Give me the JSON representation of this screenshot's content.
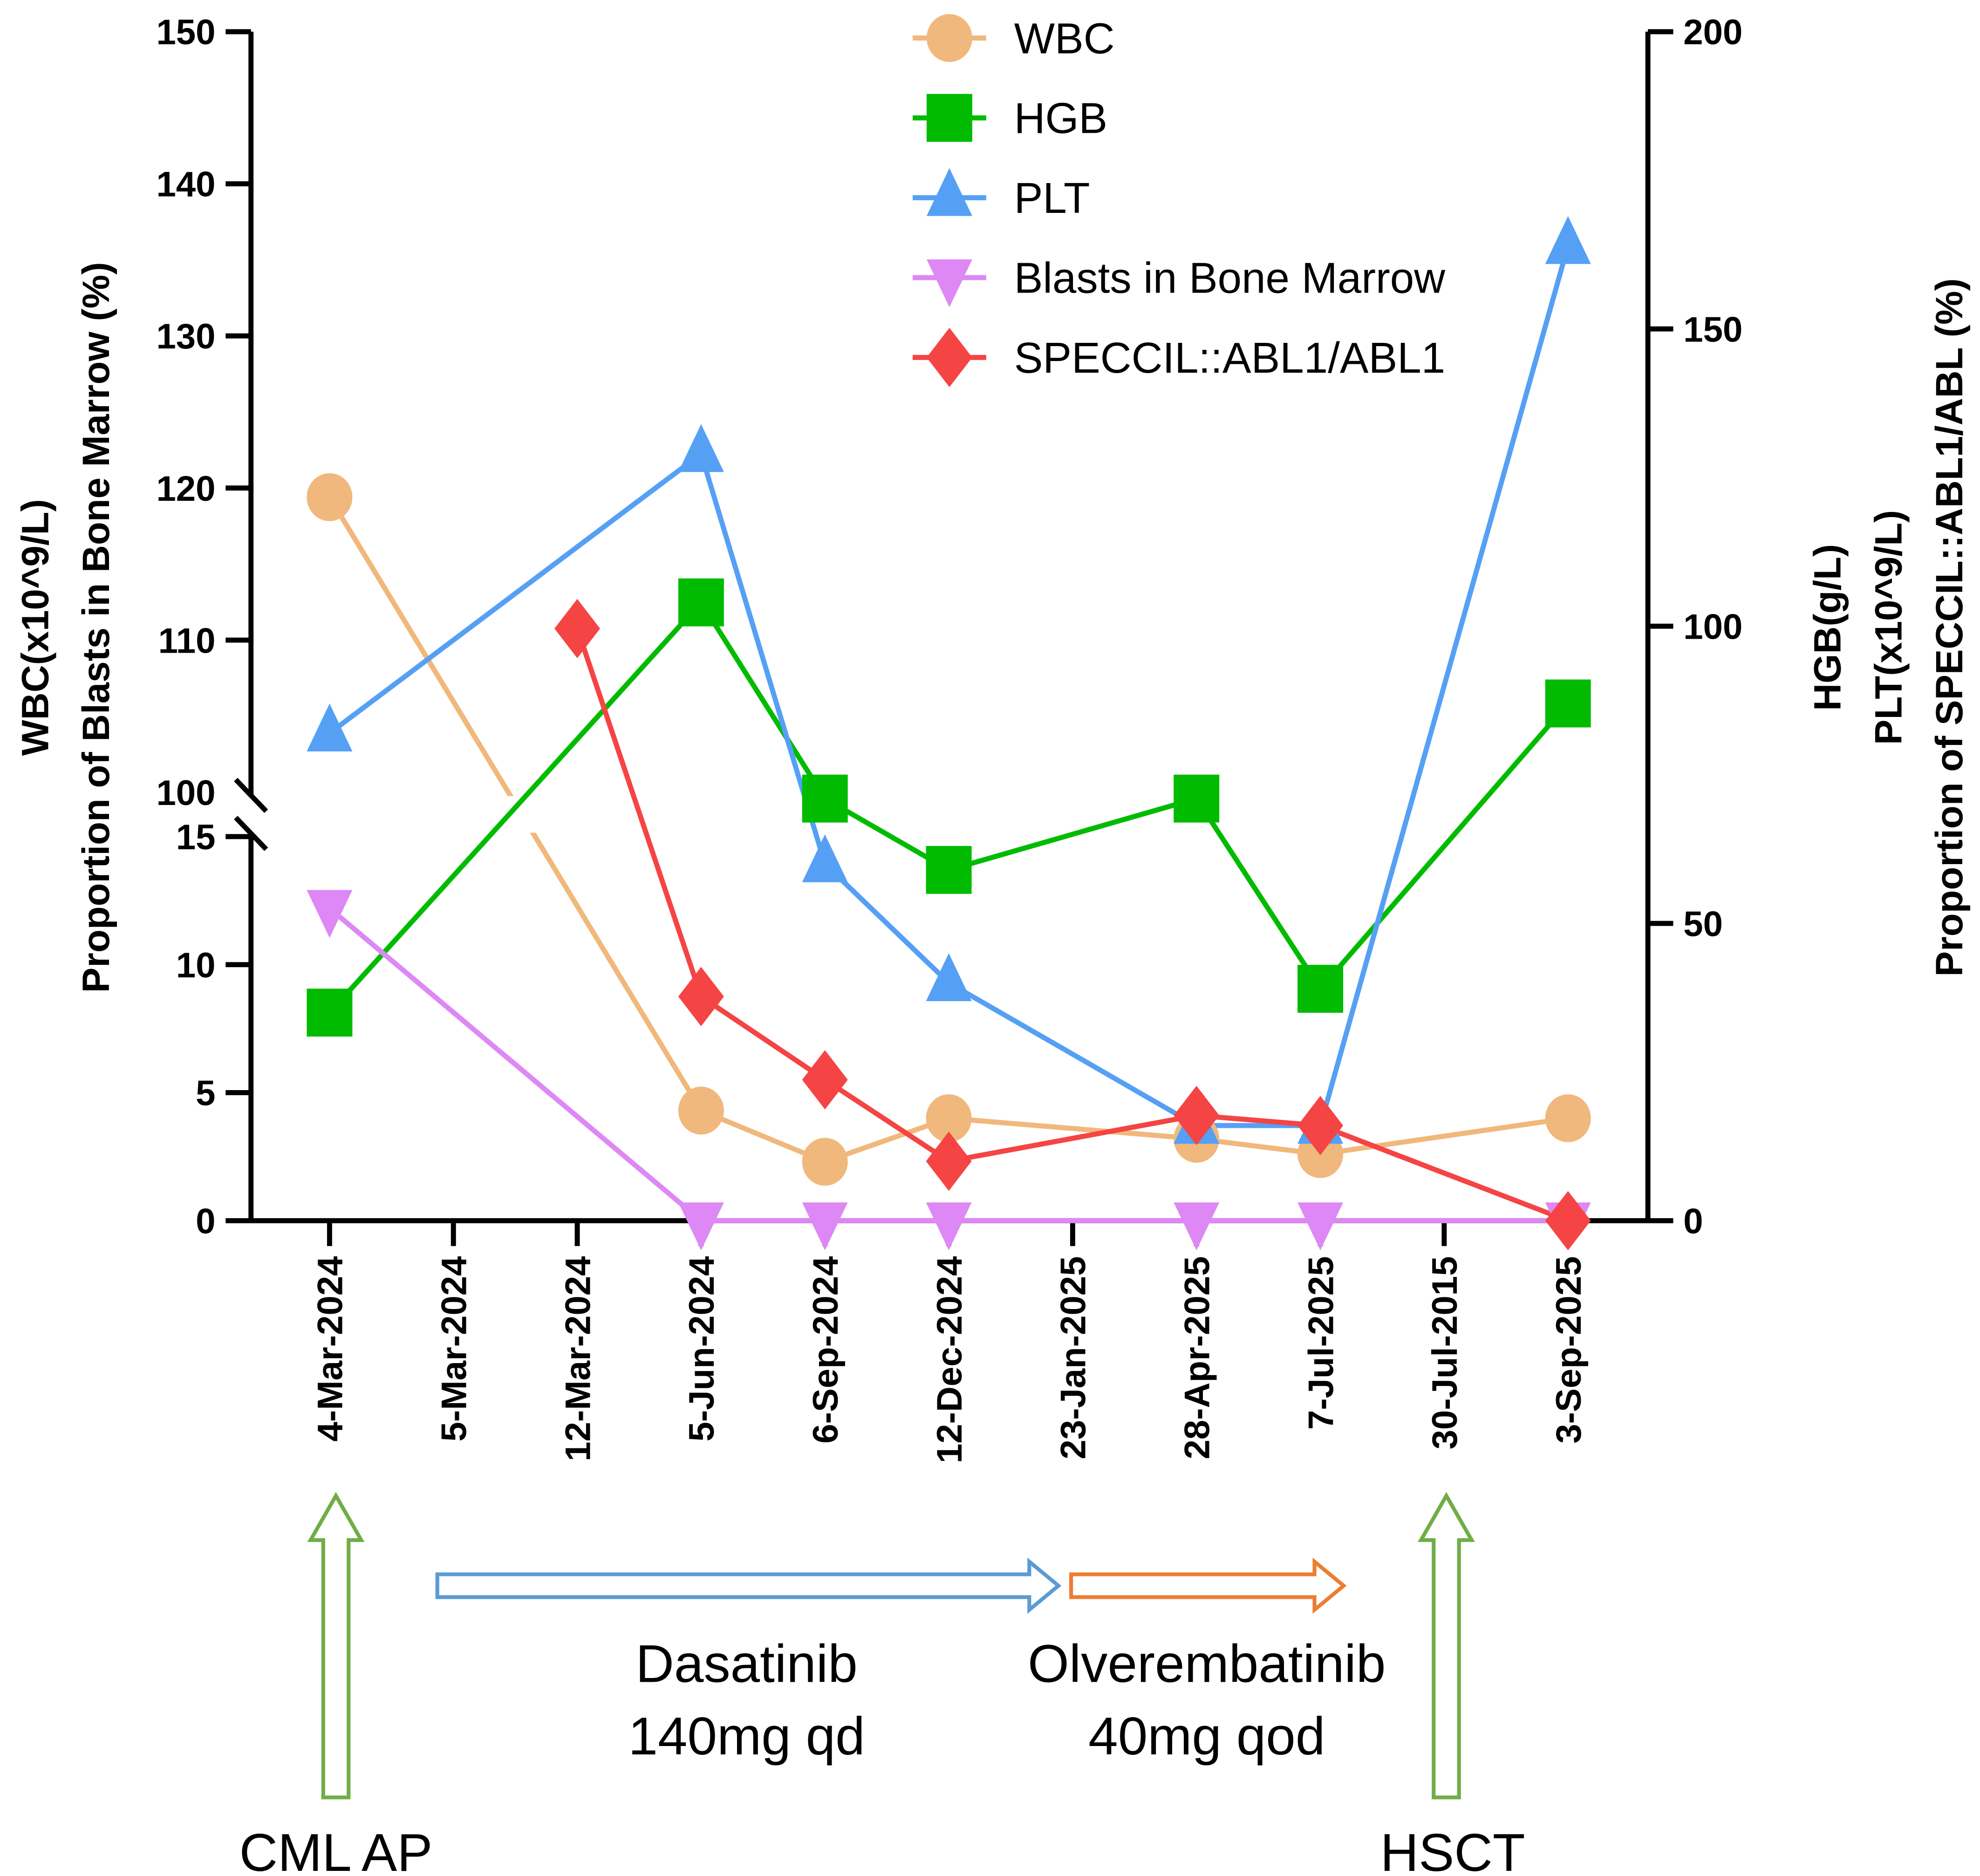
{
  "chart_data": {
    "type": "line",
    "title": "",
    "categories": [
      "4-Mar-2024",
      "5-Mar-2024",
      "12-Mar-2024",
      "5-Jun-2024",
      "6-Sep-2024",
      "12-Dec-2024",
      "23-Jan-2025",
      "28-Apr-2025",
      "7-Jul-2025",
      "30-Jul-2015",
      "3-Sep-2025"
    ],
    "ylabel_left": [
      "WBC(x10^9/L)",
      "Proportion of Blasts in Bone Marrow (%)"
    ],
    "ylabel_right": [
      "HGB(g/L)",
      "PLT(x10^9/L)",
      "Proportion of SPECCIL::ABL1/ABL (%)"
    ],
    "left_axis": {
      "broken": true,
      "lower_range": [
        0,
        15
      ],
      "upper_range": [
        100,
        150
      ],
      "lower_ticks": [
        "0",
        "5",
        "10",
        "15"
      ],
      "upper_ticks": [
        "100",
        "110",
        "120",
        "130",
        "140",
        "150"
      ]
    },
    "right_axis": {
      "range": [
        0,
        200
      ],
      "ticks": [
        "0",
        "50",
        "100",
        "150",
        "200"
      ]
    },
    "legend_position": "top-center",
    "series": [
      {
        "name": "WBC",
        "axis": "left",
        "marker": "circle",
        "color": "#F0B87C",
        "values": [
          119.4,
          null,
          null,
          4.3,
          2.3,
          4.0,
          null,
          3.2,
          2.6,
          null,
          4.0
        ]
      },
      {
        "name": "HGB",
        "axis": "right",
        "marker": "square",
        "color": "#00BB00",
        "values": [
          35,
          null,
          null,
          104,
          71,
          59,
          null,
          71,
          39,
          null,
          87
        ]
      },
      {
        "name": "PLT",
        "axis": "right",
        "marker": "triangle",
        "color": "#55A0F5",
        "values": [
          82,
          null,
          null,
          129,
          60,
          40,
          null,
          16,
          16,
          null,
          164
        ]
      },
      {
        "name": "Blasts in Bone Marrow",
        "axis": "left",
        "marker": "triangle-down",
        "color": "#DD88F5",
        "values": [
          12.2,
          null,
          null,
          0,
          0,
          0,
          null,
          0,
          0,
          null,
          0
        ]
      },
      {
        "name": "SPECCIL::ABL1/ABL1",
        "axis": "right",
        "marker": "diamond",
        "color": "#F54444",
        "values": [
          null,
          null,
          99.6,
          37.7,
          23.7,
          10,
          null,
          17.7,
          16,
          null,
          0
        ]
      }
    ],
    "annotations": {
      "cml_ap": "CML AP",
      "hsct": "HSCT",
      "dasatinib": [
        "Dasatinib",
        "140mg qd"
      ],
      "olverembatinib": [
        "Olverembatinib",
        "40mg qod"
      ]
    }
  }
}
